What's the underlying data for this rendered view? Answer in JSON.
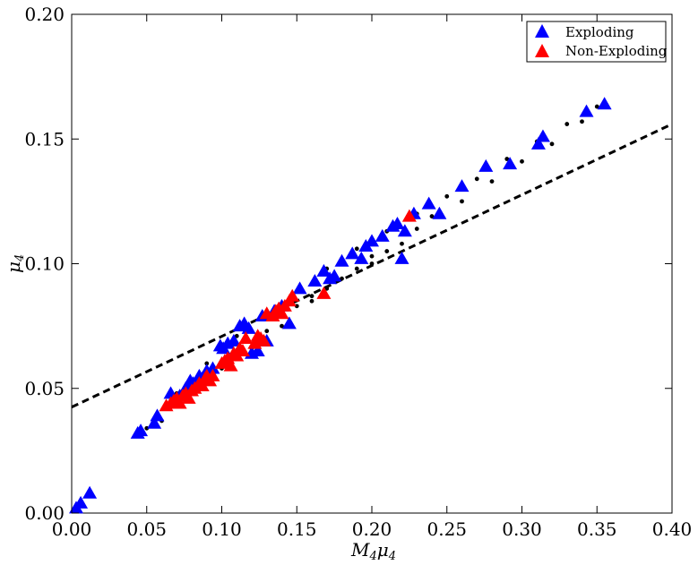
{
  "chart_data": {
    "type": "scatter",
    "xlabel_main": "M",
    "xlabel_sub1": "4",
    "xlabel_mid": "μ",
    "xlabel_sub2": "4",
    "ylabel_main": "μ",
    "ylabel_sub": "4",
    "xlim": [
      0.0,
      0.4
    ],
    "ylim": [
      0.0,
      0.2
    ],
    "xticks": [
      "0.00",
      "0.05",
      "0.10",
      "0.15",
      "0.20",
      "0.25",
      "0.30",
      "0.35",
      "0.40"
    ],
    "yticks": [
      "0.00",
      "0.05",
      "0.10",
      "0.15",
      "0.20"
    ],
    "grid": false,
    "legend_position": "top-right",
    "colors": {
      "exploding": "#0000ff",
      "non_exploding": "#ff0000",
      "dots": "#000000",
      "fit_line": "#000000"
    },
    "series": [
      {
        "name": "Exploding",
        "marker": "triangle",
        "x": [
          0.003,
          0.006,
          0.012,
          0.044,
          0.046,
          0.055,
          0.057,
          0.066,
          0.072,
          0.076,
          0.079,
          0.081,
          0.085,
          0.087,
          0.09,
          0.094,
          0.099,
          0.101,
          0.104,
          0.108,
          0.112,
          0.115,
          0.118,
          0.12,
          0.124,
          0.127,
          0.13,
          0.135,
          0.14,
          0.145,
          0.152,
          0.162,
          0.168,
          0.172,
          0.175,
          0.18,
          0.187,
          0.193,
          0.196,
          0.2,
          0.207,
          0.214,
          0.217,
          0.22,
          0.222,
          0.228,
          0.238,
          0.245,
          0.26,
          0.276,
          0.292,
          0.311,
          0.314,
          0.343,
          0.355
        ],
        "y": [
          0.002,
          0.004,
          0.008,
          0.032,
          0.033,
          0.036,
          0.039,
          0.048,
          0.047,
          0.05,
          0.053,
          0.052,
          0.055,
          0.054,
          0.057,
          0.058,
          0.067,
          0.066,
          0.068,
          0.069,
          0.075,
          0.076,
          0.074,
          0.064,
          0.065,
          0.079,
          0.069,
          0.081,
          0.083,
          0.076,
          0.09,
          0.093,
          0.097,
          0.094,
          0.095,
          0.101,
          0.104,
          0.102,
          0.107,
          0.109,
          0.111,
          0.115,
          0.116,
          0.102,
          0.113,
          0.12,
          0.124,
          0.12,
          0.131,
          0.139,
          0.14,
          0.148,
          0.151,
          0.161,
          0.164
        ]
      },
      {
        "name": "Non-Exploding",
        "marker": "triangle",
        "x": [
          0.063,
          0.066,
          0.068,
          0.07,
          0.072,
          0.074,
          0.076,
          0.078,
          0.08,
          0.082,
          0.085,
          0.087,
          0.089,
          0.09,
          0.092,
          0.094,
          0.1,
          0.102,
          0.104,
          0.106,
          0.108,
          0.11,
          0.112,
          0.114,
          0.116,
          0.122,
          0.124,
          0.126,
          0.128,
          0.13,
          0.134,
          0.136,
          0.138,
          0.14,
          0.142,
          0.145,
          0.147,
          0.168,
          0.225
        ],
        "y": [
          0.043,
          0.044,
          0.045,
          0.046,
          0.044,
          0.047,
          0.048,
          0.046,
          0.049,
          0.05,
          0.052,
          0.051,
          0.054,
          0.055,
          0.053,
          0.055,
          0.06,
          0.061,
          0.062,
          0.059,
          0.064,
          0.063,
          0.066,
          0.065,
          0.07,
          0.068,
          0.071,
          0.07,
          0.069,
          0.08,
          0.079,
          0.081,
          0.082,
          0.08,
          0.083,
          0.085,
          0.087,
          0.088,
          0.119
        ]
      }
    ],
    "fit_line": {
      "style": "dashed",
      "x": [
        0.0,
        0.4
      ],
      "y": [
        0.0425,
        0.156
      ]
    },
    "track_points": [
      [
        0.05,
        0.034
      ],
      [
        0.07,
        0.048
      ],
      [
        0.09,
        0.06
      ],
      [
        0.11,
        0.071
      ],
      [
        0.13,
        0.081
      ],
      [
        0.15,
        0.089
      ],
      [
        0.17,
        0.098
      ],
      [
        0.19,
        0.106
      ],
      [
        0.21,
        0.113
      ],
      [
        0.23,
        0.12
      ],
      [
        0.25,
        0.127
      ],
      [
        0.27,
        0.134
      ],
      [
        0.29,
        0.142
      ],
      [
        0.31,
        0.149
      ],
      [
        0.33,
        0.156
      ],
      [
        0.35,
        0.163
      ],
      [
        0.06,
        0.037
      ],
      [
        0.08,
        0.049
      ],
      [
        0.1,
        0.058
      ],
      [
        0.12,
        0.066
      ],
      [
        0.14,
        0.075
      ],
      [
        0.16,
        0.085
      ],
      [
        0.18,
        0.094
      ],
      [
        0.2,
        0.103
      ],
      [
        0.22,
        0.112
      ],
      [
        0.24,
        0.119
      ],
      [
        0.26,
        0.125
      ],
      [
        0.28,
        0.133
      ],
      [
        0.3,
        0.141
      ],
      [
        0.32,
        0.148
      ],
      [
        0.34,
        0.157
      ],
      [
        0.11,
        0.064
      ],
      [
        0.13,
        0.073
      ],
      [
        0.15,
        0.083
      ],
      [
        0.17,
        0.09
      ],
      [
        0.19,
        0.098
      ],
      [
        0.21,
        0.105
      ],
      [
        0.23,
        0.114
      ],
      [
        0.16,
        0.087
      ],
      [
        0.2,
        0.1
      ],
      [
        0.22,
        0.108
      ]
    ]
  }
}
